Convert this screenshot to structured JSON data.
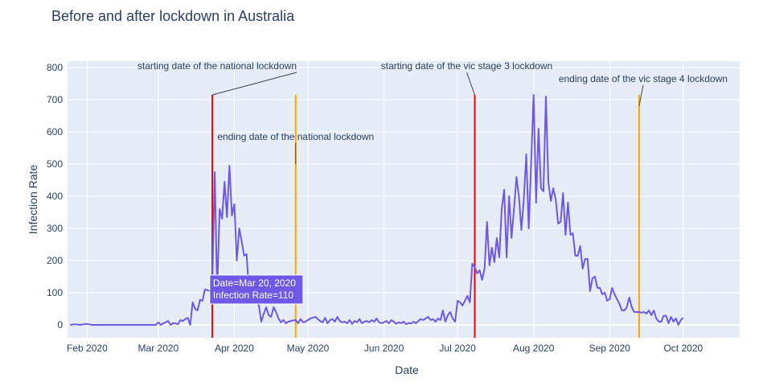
{
  "chart_data": {
    "type": "line",
    "title": "Before and after lockdown in Australia",
    "xlabel": "Date",
    "ylabel": "Infection Rate",
    "xlim": [
      "2020-01-24",
      "2020-10-24"
    ],
    "ylim": [
      -40,
      820
    ],
    "grid": true,
    "x_ticks": [
      {
        "date": "2020-02-01",
        "label": "Feb 2020"
      },
      {
        "date": "2020-03-01",
        "label": "Mar 2020"
      },
      {
        "date": "2020-04-01",
        "label": "Apr 2020"
      },
      {
        "date": "2020-05-01",
        "label": "May 2020"
      },
      {
        "date": "2020-06-01",
        "label": "Jun 2020"
      },
      {
        "date": "2020-07-01",
        "label": "Jul 2020"
      },
      {
        "date": "2020-08-01",
        "label": "Aug 2020"
      },
      {
        "date": "2020-09-01",
        "label": "Sep 2020"
      },
      {
        "date": "2020-10-01",
        "label": "Oct 2020"
      }
    ],
    "y_ticks": [
      0,
      100,
      200,
      300,
      400,
      500,
      600,
      700,
      800
    ],
    "series": [
      {
        "color": "#6f58e6",
        "points": [
          [
            "2020-01-25",
            0
          ],
          [
            "2020-01-27",
            2
          ],
          [
            "2020-01-29",
            0
          ],
          [
            "2020-02-01",
            3
          ],
          [
            "2020-02-03",
            0
          ],
          [
            "2020-02-10",
            0
          ],
          [
            "2020-02-20",
            0
          ],
          [
            "2020-02-29",
            0
          ],
          [
            "2020-03-01",
            8
          ],
          [
            "2020-03-02",
            0
          ],
          [
            "2020-03-03",
            5
          ],
          [
            "2020-03-04",
            8
          ],
          [
            "2020-03-05",
            12
          ],
          [
            "2020-03-06",
            0
          ],
          [
            "2020-03-07",
            5
          ],
          [
            "2020-03-08",
            5
          ],
          [
            "2020-03-09",
            2
          ],
          [
            "2020-03-10",
            15
          ],
          [
            "2020-03-11",
            12
          ],
          [
            "2020-03-12",
            18
          ],
          [
            "2020-03-13",
            22
          ],
          [
            "2020-03-14",
            0
          ],
          [
            "2020-03-15",
            70
          ],
          [
            "2020-03-16",
            50
          ],
          [
            "2020-03-17",
            45
          ],
          [
            "2020-03-18",
            78
          ],
          [
            "2020-03-19",
            75
          ],
          [
            "2020-03-20",
            110
          ],
          [
            "2020-03-21",
            108
          ],
          [
            "2020-03-22",
            105
          ],
          [
            "2020-03-23",
            125
          ],
          [
            "2020-03-24",
            475
          ],
          [
            "2020-03-25",
            100
          ],
          [
            "2020-03-26",
            360
          ],
          [
            "2020-03-27",
            330
          ],
          [
            "2020-03-28",
            445
          ],
          [
            "2020-03-29",
            335
          ],
          [
            "2020-03-30",
            495
          ],
          [
            "2020-03-31",
            340
          ],
          [
            "2020-04-01",
            375
          ],
          [
            "2020-04-02",
            200
          ],
          [
            "2020-04-03",
            300
          ],
          [
            "2020-04-04",
            260
          ],
          [
            "2020-04-05",
            215
          ],
          [
            "2020-04-06",
            220
          ],
          [
            "2020-04-07",
            100
          ],
          [
            "2020-04-08",
            120
          ],
          [
            "2020-04-09",
            105
          ],
          [
            "2020-04-10",
            75
          ],
          [
            "2020-04-11",
            60
          ],
          [
            "2020-04-12",
            10
          ],
          [
            "2020-04-13",
            35
          ],
          [
            "2020-04-14",
            55
          ],
          [
            "2020-04-15",
            30
          ],
          [
            "2020-04-16",
            25
          ],
          [
            "2020-04-17",
            55
          ],
          [
            "2020-04-18",
            40
          ],
          [
            "2020-04-19",
            20
          ],
          [
            "2020-04-20",
            8
          ],
          [
            "2020-04-21",
            15
          ],
          [
            "2020-04-22",
            5
          ],
          [
            "2020-04-23",
            10
          ],
          [
            "2020-04-24",
            12
          ],
          [
            "2020-04-25",
            14
          ],
          [
            "2020-04-26",
            15
          ],
          [
            "2020-04-27",
            5
          ],
          [
            "2020-04-28",
            18
          ],
          [
            "2020-04-29",
            8
          ],
          [
            "2020-04-30",
            10
          ],
          [
            "2020-05-01",
            15
          ],
          [
            "2020-05-02",
            20
          ],
          [
            "2020-05-03",
            22
          ],
          [
            "2020-05-04",
            25
          ],
          [
            "2020-05-05",
            18
          ],
          [
            "2020-05-06",
            12
          ],
          [
            "2020-05-07",
            8
          ],
          [
            "2020-05-08",
            22
          ],
          [
            "2020-05-09",
            5
          ],
          [
            "2020-05-10",
            15
          ],
          [
            "2020-05-11",
            18
          ],
          [
            "2020-05-12",
            10
          ],
          [
            "2020-05-13",
            25
          ],
          [
            "2020-05-14",
            12
          ],
          [
            "2020-05-15",
            8
          ],
          [
            "2020-05-16",
            10
          ],
          [
            "2020-05-17",
            5
          ],
          [
            "2020-05-18",
            15
          ],
          [
            "2020-05-19",
            3
          ],
          [
            "2020-05-20",
            12
          ],
          [
            "2020-05-21",
            8
          ],
          [
            "2020-05-22",
            18
          ],
          [
            "2020-05-23",
            5
          ],
          [
            "2020-05-24",
            10
          ],
          [
            "2020-05-25",
            12
          ],
          [
            "2020-05-26",
            8
          ],
          [
            "2020-05-27",
            15
          ],
          [
            "2020-05-28",
            10
          ],
          [
            "2020-05-29",
            20
          ],
          [
            "2020-05-30",
            8
          ],
          [
            "2020-05-31",
            5
          ],
          [
            "2020-06-01",
            8
          ],
          [
            "2020-06-02",
            12
          ],
          [
            "2020-06-03",
            5
          ],
          [
            "2020-06-04",
            15
          ],
          [
            "2020-06-05",
            10
          ],
          [
            "2020-06-06",
            3
          ],
          [
            "2020-06-07",
            8
          ],
          [
            "2020-06-08",
            5
          ],
          [
            "2020-06-09",
            10
          ],
          [
            "2020-06-10",
            2
          ],
          [
            "2020-06-11",
            6
          ],
          [
            "2020-06-12",
            4
          ],
          [
            "2020-06-13",
            10
          ],
          [
            "2020-06-14",
            5
          ],
          [
            "2020-06-15",
            12
          ],
          [
            "2020-06-16",
            18
          ],
          [
            "2020-06-17",
            15
          ],
          [
            "2020-06-18",
            20
          ],
          [
            "2020-06-19",
            25
          ],
          [
            "2020-06-20",
            15
          ],
          [
            "2020-06-21",
            18
          ],
          [
            "2020-06-22",
            10
          ],
          [
            "2020-06-23",
            20
          ],
          [
            "2020-06-24",
            15
          ],
          [
            "2020-06-25",
            45
          ],
          [
            "2020-06-26",
            10
          ],
          [
            "2020-06-27",
            30
          ],
          [
            "2020-06-28",
            40
          ],
          [
            "2020-06-29",
            20
          ],
          [
            "2020-06-30",
            10
          ],
          [
            "2020-07-01",
            75
          ],
          [
            "2020-07-02",
            70
          ],
          [
            "2020-07-03",
            60
          ],
          [
            "2020-07-04",
            75
          ],
          [
            "2020-07-05",
            90
          ],
          [
            "2020-07-06",
            70
          ],
          [
            "2020-07-07",
            190
          ],
          [
            "2020-07-08",
            180
          ],
          [
            "2020-07-09",
            160
          ],
          [
            "2020-07-10",
            170
          ],
          [
            "2020-07-11",
            140
          ],
          [
            "2020-07-12",
            175
          ],
          [
            "2020-07-13",
            320
          ],
          [
            "2020-07-14",
            185
          ],
          [
            "2020-07-15",
            240
          ],
          [
            "2020-07-16",
            195
          ],
          [
            "2020-07-17",
            270
          ],
          [
            "2020-07-18",
            210
          ],
          [
            "2020-07-19",
            360
          ],
          [
            "2020-07-20",
            420
          ],
          [
            "2020-07-21",
            210
          ],
          [
            "2020-07-22",
            400
          ],
          [
            "2020-07-23",
            270
          ],
          [
            "2020-07-24",
            360
          ],
          [
            "2020-07-25",
            460
          ],
          [
            "2020-07-26",
            400
          ],
          [
            "2020-07-27",
            295
          ],
          [
            "2020-07-28",
            390
          ],
          [
            "2020-07-29",
            530
          ],
          [
            "2020-07-30",
            300
          ],
          [
            "2020-07-31",
            510
          ],
          [
            "2020-08-01",
            715
          ],
          [
            "2020-08-02",
            380
          ],
          [
            "2020-08-03",
            610
          ],
          [
            "2020-08-04",
            425
          ],
          [
            "2020-08-05",
            415
          ],
          [
            "2020-08-06",
            710
          ],
          [
            "2020-08-07",
            445
          ],
          [
            "2020-08-08",
            385
          ],
          [
            "2020-08-09",
            425
          ],
          [
            "2020-08-10",
            390
          ],
          [
            "2020-08-11",
            315
          ],
          [
            "2020-08-12",
            320
          ],
          [
            "2020-08-13",
            410
          ],
          [
            "2020-08-14",
            280
          ],
          [
            "2020-08-15",
            380
          ],
          [
            "2020-08-16",
            280
          ],
          [
            "2020-08-17",
            285
          ],
          [
            "2020-08-18",
            215
          ],
          [
            "2020-08-19",
            215
          ],
          [
            "2020-08-20",
            245
          ],
          [
            "2020-08-21",
            175
          ],
          [
            "2020-08-22",
            205
          ],
          [
            "2020-08-23",
            205
          ],
          [
            "2020-08-24",
            105
          ],
          [
            "2020-08-25",
            145
          ],
          [
            "2020-08-26",
            150
          ],
          [
            "2020-08-27",
            115
          ],
          [
            "2020-08-28",
            115
          ],
          [
            "2020-08-29",
            95
          ],
          [
            "2020-08-30",
            100
          ],
          [
            "2020-08-31",
            75
          ],
          [
            "2020-09-01",
            80
          ],
          [
            "2020-09-02",
            115
          ],
          [
            "2020-09-03",
            95
          ],
          [
            "2020-09-04",
            80
          ],
          [
            "2020-09-05",
            65
          ],
          [
            "2020-09-06",
            45
          ],
          [
            "2020-09-07",
            45
          ],
          [
            "2020-09-08",
            55
          ],
          [
            "2020-09-09",
            85
          ],
          [
            "2020-09-10",
            55
          ],
          [
            "2020-09-11",
            40
          ],
          [
            "2020-09-12",
            40
          ],
          [
            "2020-09-13",
            40
          ],
          [
            "2020-09-14",
            38
          ],
          [
            "2020-09-15",
            40
          ],
          [
            "2020-09-16",
            35
          ],
          [
            "2020-09-17",
            45
          ],
          [
            "2020-09-18",
            30
          ],
          [
            "2020-09-19",
            45
          ],
          [
            "2020-09-20",
            20
          ],
          [
            "2020-09-21",
            10
          ],
          [
            "2020-09-22",
            10
          ],
          [
            "2020-09-23",
            28
          ],
          [
            "2020-09-24",
            28
          ],
          [
            "2020-09-25",
            5
          ],
          [
            "2020-09-26",
            25
          ],
          [
            "2020-09-27",
            10
          ],
          [
            "2020-09-28",
            20
          ],
          [
            "2020-09-29",
            0
          ],
          [
            "2020-09-30",
            15
          ],
          [
            "2020-10-01",
            22
          ]
        ]
      }
    ],
    "vertical_lines": [
      {
        "date": "2020-03-23",
        "color": "#ff0000",
        "top": 715
      },
      {
        "date": "2020-04-26",
        "color": "#ffa500",
        "top": 715
      },
      {
        "date": "2020-07-08",
        "color": "#ff0000",
        "top": 715
      },
      {
        "date": "2020-09-13",
        "color": "#ffa500",
        "top": 715
      }
    ],
    "annotations": [
      {
        "text": "starting date of the national lockdown",
        "date": "2020-03-23",
        "value": 715,
        "anchor": "end",
        "label_dx": 105,
        "label_dy": -32
      },
      {
        "text": "ending date of the national lockdown",
        "date": "2020-04-26",
        "value": 500,
        "anchor": "middle",
        "label_dx": 0,
        "label_dy": -30
      },
      {
        "text": "starting date of the vic stage 3 lockdown",
        "date": "2020-07-08",
        "value": 715,
        "anchor": "middle",
        "label_dx": -10,
        "label_dy": -32
      },
      {
        "text": "ending date of the vic stage 4 lockdown",
        "date": "2020-09-13",
        "value": 680,
        "anchor": "middle",
        "label_dx": 5,
        "label_dy": -30
      }
    ],
    "hover_label": {
      "date": "2020-03-20",
      "value": 110,
      "lines": [
        "Date=Mar 20, 2020",
        "Infection Rate=110"
      ]
    }
  }
}
